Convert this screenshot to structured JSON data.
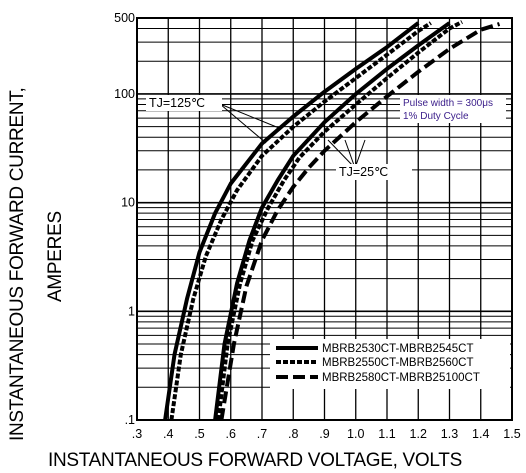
{
  "chart_data": {
    "type": "line",
    "xlabel": "INSTANTANEOUS FORWARD VOLTAGE,  VOLTS",
    "ylabel": [
      "INSTANTANEOUS FORWARD CURRENT,",
      "AMPERES"
    ],
    "x_ticks": [
      ".3",
      ".4",
      ".5",
      ".6",
      ".7",
      ".8",
      ".9",
      "1.0",
      "1.1",
      "1.2",
      "1.3",
      "1.4",
      "1.5"
    ],
    "y_ticks": [
      ".1",
      "1",
      "10",
      "100",
      "500"
    ],
    "xlim": [
      0.3,
      1.5
    ],
    "ylim": [
      0.1,
      500
    ],
    "y_scale": "log",
    "grid": true,
    "legend_position": "bottom-right",
    "annotations": {
      "tj_hot": "TJ=125℃",
      "tj_cold": "TJ=25℃",
      "pulse_line1": "Pulse width = 300μs",
      "pulse_line2": "1% Duty Cycle"
    },
    "series": [
      {
        "name": "MBRB2530CT-MBRB2545CT",
        "style": "solid",
        "temperature": "TJ=125℃",
        "x": [
          0.39,
          0.42,
          0.46,
          0.5,
          0.55,
          0.6,
          0.7,
          0.8,
          0.9,
          1.0,
          1.1,
          1.2
        ],
        "y": [
          0.1,
          0.4,
          1.3,
          3.5,
          8,
          15,
          35,
          62,
          105,
          170,
          270,
          450
        ]
      },
      {
        "name": "MBRB2550CT-MBRB2560CT",
        "style": "dotted",
        "temperature": "TJ=125℃",
        "x": [
          0.41,
          0.44,
          0.48,
          0.52,
          0.57,
          0.62,
          0.7,
          0.8,
          0.9,
          1.0,
          1.1,
          1.2,
          1.24
        ],
        "y": [
          0.1,
          0.4,
          1.3,
          3.2,
          7,
          13,
          27,
          50,
          85,
          140,
          230,
          380,
          450
        ]
      },
      {
        "name": "MBRB2530CT-MBRB2545CT",
        "style": "solid",
        "temperature": "TJ=25℃",
        "x": [
          0.55,
          0.58,
          0.62,
          0.66,
          0.7,
          0.75,
          0.8,
          0.9,
          1.0,
          1.1,
          1.2,
          1.3
        ],
        "y": [
          0.1,
          0.5,
          1.8,
          4.5,
          9,
          16,
          27,
          55,
          100,
          170,
          280,
          450
        ]
      },
      {
        "name": "MBRB2550CT-MBRB2560CT",
        "style": "dotted",
        "temperature": "TJ=25℃",
        "x": [
          0.56,
          0.59,
          0.63,
          0.67,
          0.72,
          0.77,
          0.82,
          0.9,
          1.0,
          1.1,
          1.2,
          1.3,
          1.34
        ],
        "y": [
          0.1,
          0.5,
          1.8,
          4.5,
          9,
          16,
          26,
          45,
          80,
          140,
          240,
          400,
          460
        ]
      },
      {
        "name": "MBRB2580CT-MBRB25100CT",
        "style": "dashed",
        "temperature": "TJ=25℃",
        "x": [
          0.57,
          0.61,
          0.65,
          0.7,
          0.75,
          0.8,
          0.85,
          0.9,
          1.0,
          1.1,
          1.2,
          1.3,
          1.4,
          1.46
        ],
        "y": [
          0.1,
          0.5,
          1.7,
          4.5,
          8.5,
          14,
          21,
          30,
          55,
          95,
          160,
          260,
          390,
          440
        ]
      }
    ],
    "legend": [
      {
        "label": "MBRB2530CT-MBRB2545CT",
        "style": "solid"
      },
      {
        "label": "MBRB2550CT-MBRB2560CT",
        "style": "dotted"
      },
      {
        "label": "MBRB2580CT-MBRB25100CT",
        "style": "dashed"
      }
    ]
  }
}
